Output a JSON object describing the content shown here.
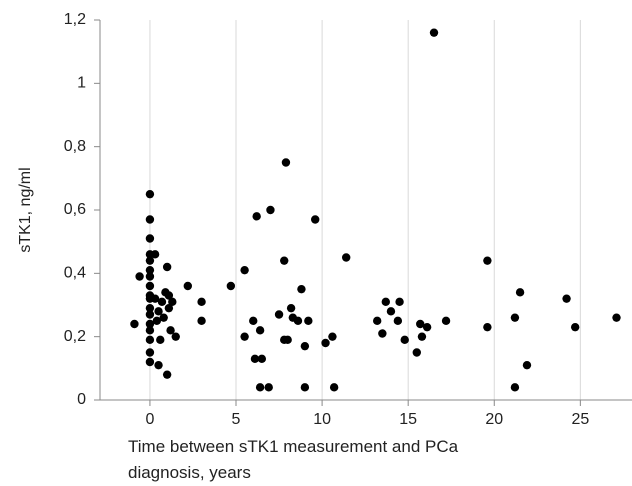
{
  "chart_data": {
    "type": "scatter",
    "x_label": "Time between sTK1 measurement and PCa diagnosis, years",
    "y_label": "sTK1, ng/ml",
    "color": "#000000",
    "x": [
      0,
      0,
      0,
      0,
      0,
      0,
      0,
      0,
      0,
      0,
      0,
      0,
      0,
      0,
      0,
      0,
      0,
      -0.6,
      -0.9,
      0.3,
      0.3,
      0.4,
      0.5,
      0.5,
      0.6,
      0.7,
      0.8,
      0.9,
      1.0,
      1.0,
      1.1,
      1.1,
      1.2,
      1.3,
      1.5,
      2.2,
      3.0,
      3.0,
      4.7,
      5.5,
      5.5,
      6.0,
      6.2,
      6.1,
      6.5,
      6.4,
      6.4,
      6.9,
      7.0,
      7.5,
      7.8,
      7.9,
      7.8,
      8.0,
      8.2,
      8.3,
      8.6,
      8.8,
      9.0,
      9.0,
      9.2,
      9.6,
      10.2,
      10.6,
      10.7,
      11.4,
      13.2,
      13.5,
      13.7,
      14.0,
      14.5,
      14.4,
      14.8,
      15.5,
      15.7,
      15.8,
      16.1,
      16.5,
      17.2,
      19.6,
      19.6,
      21.2,
      21.2,
      21.5,
      21.9,
      24.2,
      24.7,
      27.1
    ],
    "values": [
      0.65,
      0.57,
      0.51,
      0.46,
      0.44,
      0.41,
      0.39,
      0.36,
      0.33,
      0.32,
      0.29,
      0.27,
      0.24,
      0.22,
      0.19,
      0.15,
      0.12,
      0.39,
      0.24,
      0.46,
      0.32,
      0.25,
      0.28,
      0.11,
      0.19,
      0.31,
      0.26,
      0.34,
      0.08,
      0.42,
      0.33,
      0.29,
      0.22,
      0.31,
      0.2,
      0.36,
      0.31,
      0.25,
      0.36,
      0.41,
      0.2,
      0.25,
      0.58,
      0.13,
      0.13,
      0.22,
      0.04,
      0.04,
      0.6,
      0.27,
      0.44,
      0.75,
      0.19,
      0.19,
      0.29,
      0.26,
      0.25,
      0.35,
      0.17,
      0.04,
      0.25,
      0.57,
      0.18,
      0.2,
      0.04,
      0.45,
      0.25,
      0.21,
      0.31,
      0.28,
      0.31,
      0.25,
      0.19,
      0.15,
      0.24,
      0.2,
      0.23,
      1.16,
      0.25,
      0.44,
      0.23,
      0.26,
      0.04,
      0.34,
      0.11,
      0.32,
      0.23,
      0.26
    ],
    "xlim": [
      -2.9,
      28.0
    ],
    "xticks": [
      0,
      5,
      10,
      15,
      20,
      25
    ],
    "ylim": [
      0,
      1.2
    ],
    "yticks": [
      0,
      {
        "value": 0.2,
        "label": "0,2"
      },
      {
        "value": 0.4,
        "label": "0,4"
      },
      {
        "value": 0.6,
        "label": "0,6"
      },
      {
        "value": 0.8,
        "label": "0,8"
      },
      1,
      {
        "value": 1.2,
        "label": "1,2"
      }
    ],
    "x_grid": true
  }
}
